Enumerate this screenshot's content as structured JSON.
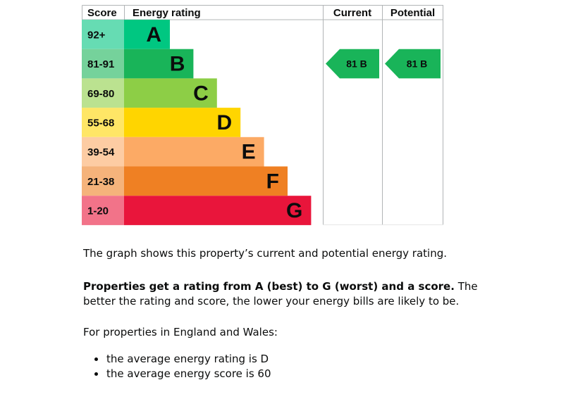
{
  "chart_data": {
    "type": "table",
    "headers": {
      "score": "Score",
      "rating": "Energy rating",
      "current": "Current",
      "potential": "Potential"
    },
    "bands": [
      {
        "letter": "A",
        "range": "92+",
        "color": "#00c781",
        "range_bg": "#66dcb3"
      },
      {
        "letter": "B",
        "range": "81-91",
        "color": "#19b459",
        "range_bg": "#75d29b"
      },
      {
        "letter": "C",
        "range": "69-80",
        "color": "#8dce46",
        "range_bg": "#bbe290"
      },
      {
        "letter": "D",
        "range": "55-68",
        "color": "#ffd500",
        "range_bg": "#ffe666"
      },
      {
        "letter": "E",
        "range": "39-54",
        "color": "#fcaa65",
        "range_bg": "#fdcca3"
      },
      {
        "letter": "F",
        "range": "21-38",
        "color": "#ef8023",
        "range_bg": "#f5b37b"
      },
      {
        "letter": "G",
        "range": "1-20",
        "color": "#e9153b",
        "range_bg": "#f27389"
      }
    ],
    "current": {
      "score": 81,
      "band": "B",
      "label": "81  B"
    },
    "potential": {
      "score": 81,
      "band": "B",
      "label": "81  B"
    }
  },
  "text": {
    "p1": "The graph shows this property’s current and potential energy rating.",
    "p2_bold": "Properties get a rating from A (best) to G (worst) and a score.",
    "p2_rest": " The better the rating and score, the lower your energy bills are likely to be.",
    "p3": "For properties in England and Wales:",
    "bullets": [
      "the average energy rating is D",
      "the average energy score is 60"
    ]
  }
}
